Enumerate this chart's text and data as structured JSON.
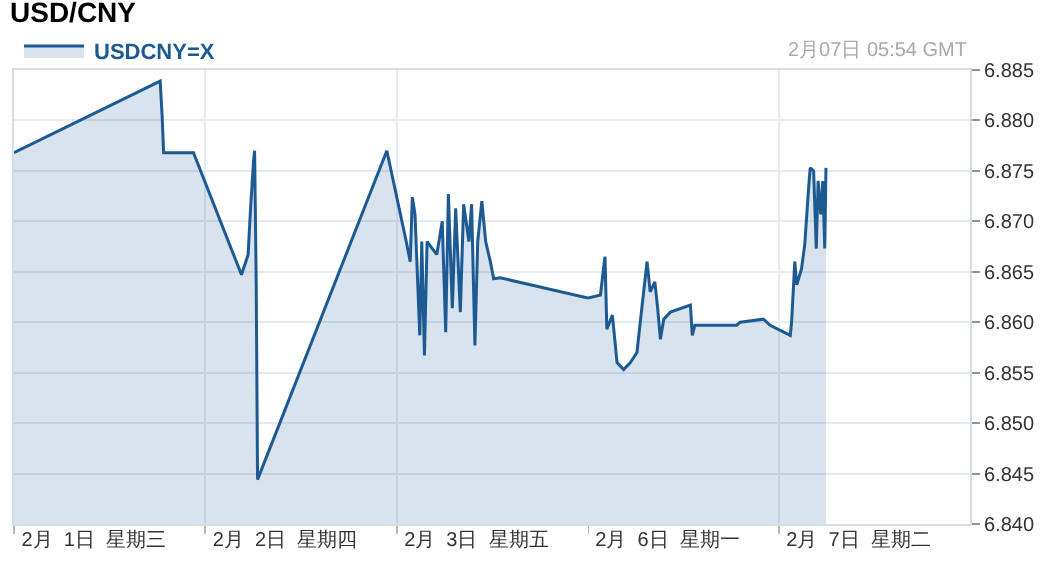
{
  "chart_data": [
    {
      "type": "area",
      "title": "USD/CNY",
      "legend": "top left",
      "grid": true,
      "marker": "none",
      "line_style": "solid",
      "tick_labels": "x",
      "xlim": [
        "--02-01",
        "--02-04"
      ],
      "xticks": [
        {
          "value": "--02-01",
          "label": null
        },
        {
          "value": "--02-02",
          "label": null
        },
        {
          "value": "--02-03",
          "label": null
        },
        {
          "value": "--02-01T10:00",
          "label": "2月  1日  星期三"
        },
        {
          "value": "--02-02T10:00",
          "label": "2月  2日  星期四"
        },
        {
          "value": "--02-03T10:00",
          "label": "2月  3日  星期五"
        }
      ],
      "ylim": [
        6.84,
        6.885
      ],
      "yticks": [
        6.84,
        6.845,
        6.85,
        6.855,
        6.86,
        6.865,
        6.87,
        6.875,
        6.88,
        6.885
      ],
      "series": [
        {
          "name": "USDCNY=X",
          "color": "#1d5a94",
          "x": [
            "--02-01T00:00",
            "--02-01T18:20",
            "--02-01T18:35",
            "--02-01T18:46",
            "--02-01T22:31",
            "--02-02T04:32",
            "--02-02T05:22",
            "--02-02T05:41",
            "--02-02T06:03",
            "--02-02T06:11",
            "--02-02T06:23",
            "--02-02T06:33",
            "--02-02T22:46",
            "--02-03T01:12",
            "--02-03T01:42",
            "--02-03T01:58",
            "--02-03T02:18",
            "--02-03T02:38",
            "--02-03T02:54",
            "--02-03T03:09",
            "--02-03T03:29",
            "--02-03T03:49",
            "--02-03T05:02",
            "--02-03T05:43",
            "--02-03T06:09",
            "--02-03T06:29",
            "--02-03T06:59",
            "--02-03T07:24",
            "--02-03T07:59",
            "--02-03T08:24",
            "--02-03T09:04",
            "--02-03T09:24",
            "--02-03T09:49",
            "--02-03T10:10",
            "--02-03T10:41",
            "--02-03T11:10",
            "--02-03T11:45",
            "--02-03T12:10",
            "--02-03T13:00",
            "--02-04T00:00"
          ],
          "values": [
            6.8768,
            6.8839,
            6.8804,
            6.8768,
            6.8768,
            6.8647,
            6.8667,
            6.8714,
            6.876,
            6.877,
            6.8637,
            6.8444,
            6.877,
            6.868,
            6.866,
            6.8724,
            6.8707,
            6.864,
            6.8587,
            6.868,
            6.8567,
            6.868,
            6.8667,
            6.87,
            6.859,
            6.8727,
            6.8614,
            6.8713,
            6.861,
            6.8717,
            6.868,
            6.8717,
            6.8577,
            6.868,
            6.872,
            6.868,
            6.866,
            6.8643,
            6.8644,
            6.8624
          ]
        }
      ]
    },
    {
      "type": "area",
      "annotations": [
        "2月07日 05:54 GMT"
      ],
      "grid": true,
      "marker": "none",
      "line_style": "solid",
      "xlim": [
        "--02-06",
        "--02-08"
      ],
      "xticks": [
        {
          "value": "--02-06",
          "label": null
        },
        {
          "value": "--02-07",
          "label": null
        },
        {
          "value": "--02-06T10:00",
          "label": "2月  6日  星期一"
        },
        {
          "value": "--02-07T10:00",
          "label": "2月  7日  星期二"
        }
      ],
      "ylim": [
        6.84,
        6.885
      ],
      "yticks": [
        {
          "value": 6.84,
          "label": "6.840"
        },
        6.845,
        {
          "value": 6.85,
          "label": "6.850"
        },
        6.855,
        {
          "value": 6.86,
          "label": "6.860"
        },
        6.865,
        {
          "value": 6.87,
          "label": "6.870"
        },
        6.875,
        {
          "value": 6.88,
          "label": "6.880"
        },
        6.885
      ],
      "series": [
        {
          "color": "#1d5a94",
          "x": [
            "--02-06T00:00",
            "--02-06T01:34",
            "--02-06T02:08",
            "--02-06T02:22",
            "--02-06T03:04",
            "--02-06T03:39",
            "--02-06T04:29",
            "--02-06T05:19",
            "--02-06T06:09",
            "--02-06T06:34",
            "--02-06T07:25",
            "--02-06T07:49",
            "--02-06T08:24",
            "--02-06T08:45",
            "--02-06T09:06",
            "--02-06T09:31",
            "--02-06T10:21",
            "--02-06T12:52",
            "--02-06T13:06",
            "--02-06T13:26",
            "--02-06T18:41",
            "--02-06T19:07",
            "--02-06T22:03",
            "--02-06T22:53",
            "--02-07T01:25",
            "--02-07T01:35",
            "--02-07T01:59",
            "--02-07T02:14",
            "--02-07T02:50",
            "--02-07T03:14",
            "--02-07T03:40",
            "--02-07T03:55",
            "--02-07T04:21",
            "--02-07T04:41",
            "--02-07T04:55",
            "--02-07T05:15",
            "--02-07T05:30",
            "--02-07T05:45",
            "--02-07T05:54"
          ],
          "values": [
            6.8624,
            6.8627,
            6.8665,
            6.8593,
            6.8607,
            6.856,
            6.8553,
            6.856,
            6.857,
            6.86,
            6.866,
            6.863,
            6.864,
            6.8614,
            6.8583,
            6.8603,
            6.861,
            6.8617,
            6.8587,
            6.8597,
            6.8597,
            6.86,
            6.8603,
            6.8597,
            6.8587,
            6.86,
            6.866,
            6.8637,
            6.8653,
            6.8677,
            6.8727,
            6.8753,
            6.875,
            6.8673,
            6.874,
            6.8707,
            6.874,
            6.8673,
            6.8753
          ]
        }
      ]
    }
  ]
}
